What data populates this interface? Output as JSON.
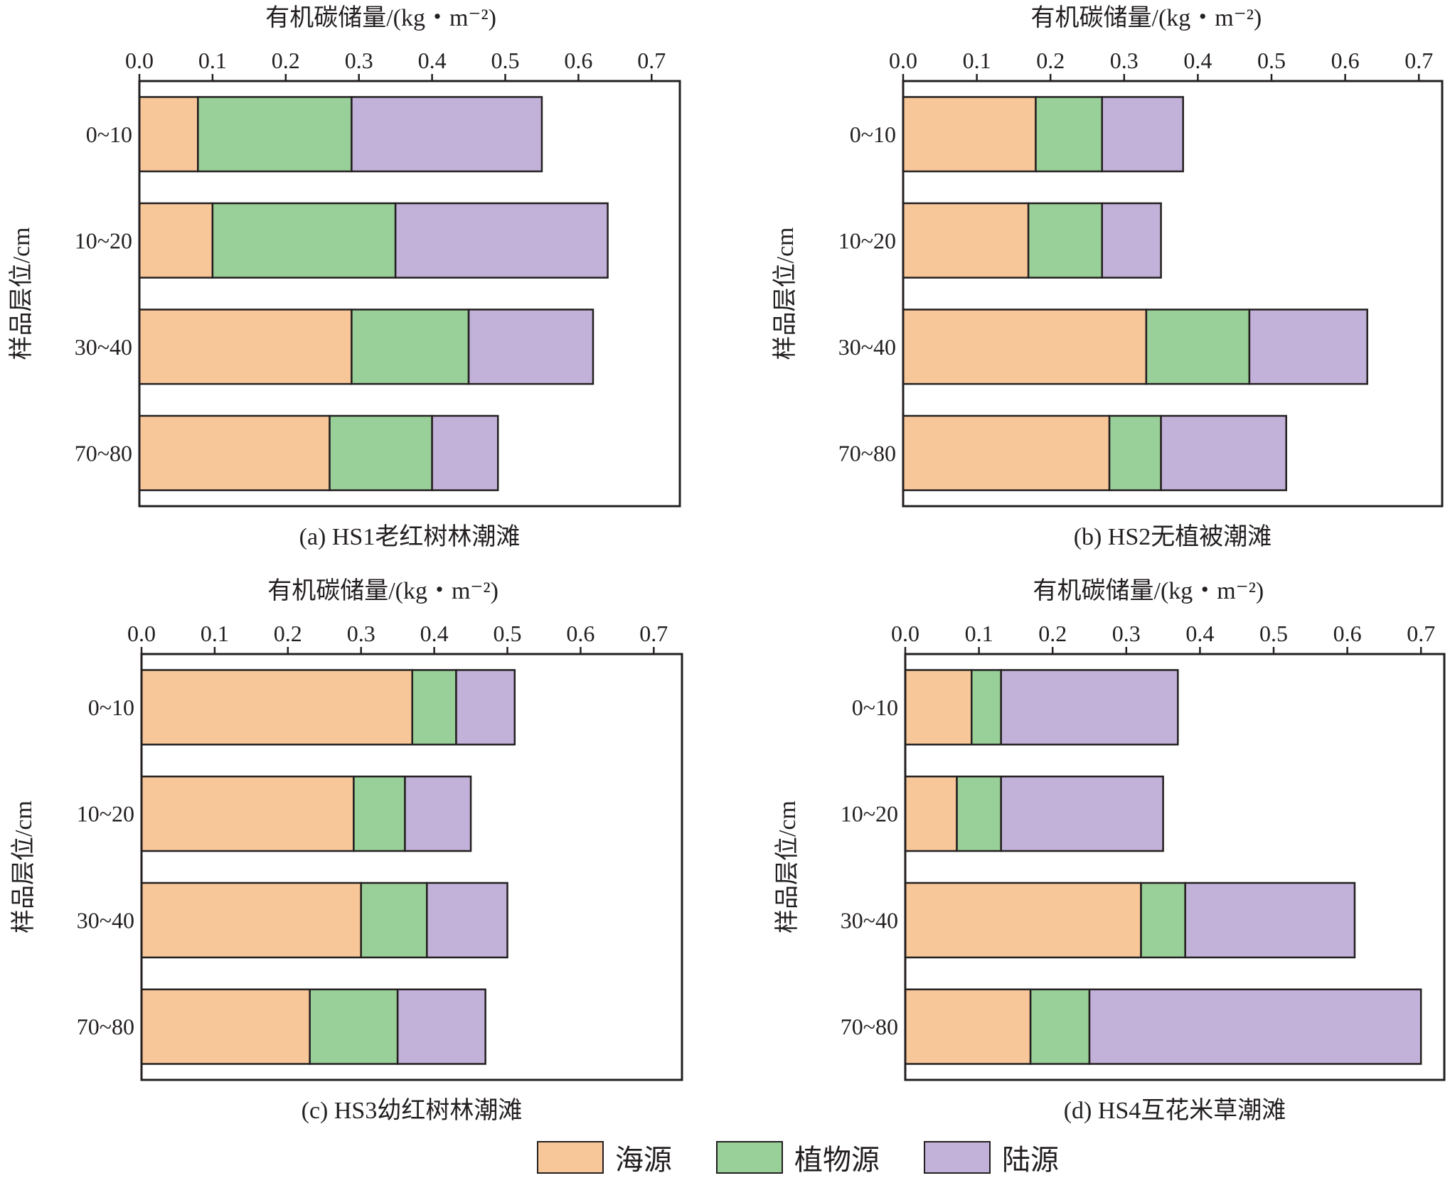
{
  "colors": {
    "marine": "#f8c799",
    "plant": "#99cf98",
    "terrestrial": "#c2b1d8",
    "axis": "#231f20"
  },
  "legend": [
    {
      "key": "marine",
      "label": "海源"
    },
    {
      "key": "plant",
      "label": "植物源"
    },
    {
      "key": "terrestrial",
      "label": "陆源"
    }
  ],
  "chart_data": [
    {
      "type": "bar",
      "orientation": "horizontal",
      "stacked": true,
      "title": "(a) HS1老红树林潮滩",
      "xlabel": "有机碳储量/(kg・m⁻²)",
      "ylabel": "样品层位/cm",
      "xlim": [
        0,
        0.75
      ],
      "xticks": [
        "0.0",
        "0.1",
        "0.2",
        "0.3",
        "0.4",
        "0.5",
        "0.6",
        "0.7"
      ],
      "categories": [
        "0~10",
        "10~20",
        "30~40",
        "70~80"
      ],
      "series": [
        {
          "name": "海源",
          "values": [
            0.08,
            0.1,
            0.29,
            0.26
          ]
        },
        {
          "name": "植物源",
          "values": [
            0.21,
            0.25,
            0.16,
            0.14
          ]
        },
        {
          "name": "陆源",
          "values": [
            0.26,
            0.29,
            0.17,
            0.09
          ]
        }
      ]
    },
    {
      "type": "bar",
      "orientation": "horizontal",
      "stacked": true,
      "title": "(b) HS2无植被潮滩",
      "xlabel": "有机碳储量/(kg・m⁻²)",
      "ylabel": "样品层位/cm",
      "xlim": [
        0,
        0.75
      ],
      "xticks": [
        "0.0",
        "0.1",
        "0.2",
        "0.3",
        "0.4",
        "0.5",
        "0.6",
        "0.7"
      ],
      "categories": [
        "0~10",
        "10~20",
        "30~40",
        "70~80"
      ],
      "series": [
        {
          "name": "海源",
          "values": [
            0.18,
            0.17,
            0.33,
            0.28
          ]
        },
        {
          "name": "植物源",
          "values": [
            0.09,
            0.1,
            0.14,
            0.07
          ]
        },
        {
          "name": "陆源",
          "values": [
            0.11,
            0.08,
            0.16,
            0.17
          ]
        }
      ]
    },
    {
      "type": "bar",
      "orientation": "horizontal",
      "stacked": true,
      "title": "(c) HS3幼红树林潮滩",
      "xlabel": "有机碳储量/(kg・m⁻²)",
      "ylabel": "样品层位/cm",
      "xlim": [
        0,
        0.75
      ],
      "xticks": [
        "0.0",
        "0.1",
        "0.2",
        "0.3",
        "0.4",
        "0.5",
        "0.6",
        "0.7"
      ],
      "categories": [
        "0~10",
        "10~20",
        "30~40",
        "70~80"
      ],
      "series": [
        {
          "name": "海源",
          "values": [
            0.37,
            0.29,
            0.3,
            0.23
          ]
        },
        {
          "name": "植物源",
          "values": [
            0.06,
            0.07,
            0.09,
            0.12
          ]
        },
        {
          "name": "陆源",
          "values": [
            0.08,
            0.09,
            0.11,
            0.12
          ]
        }
      ]
    },
    {
      "type": "bar",
      "orientation": "horizontal",
      "stacked": true,
      "title": "(d) HS4互花米草潮滩",
      "xlabel": "有机碳储量/(kg・m⁻²)",
      "ylabel": "样品层位/cm",
      "xlim": [
        0,
        0.75
      ],
      "xticks": [
        "0.0",
        "0.1",
        "0.2",
        "0.3",
        "0.4",
        "0.5",
        "0.6",
        "0.7"
      ],
      "categories": [
        "0~10",
        "10~20",
        "30~40",
        "70~80"
      ],
      "series": [
        {
          "name": "海源",
          "values": [
            0.09,
            0.07,
            0.32,
            0.17
          ]
        },
        {
          "name": "植物源",
          "values": [
            0.04,
            0.06,
            0.06,
            0.08
          ]
        },
        {
          "name": "陆源",
          "values": [
            0.24,
            0.22,
            0.23,
            0.45
          ]
        }
      ]
    }
  ]
}
